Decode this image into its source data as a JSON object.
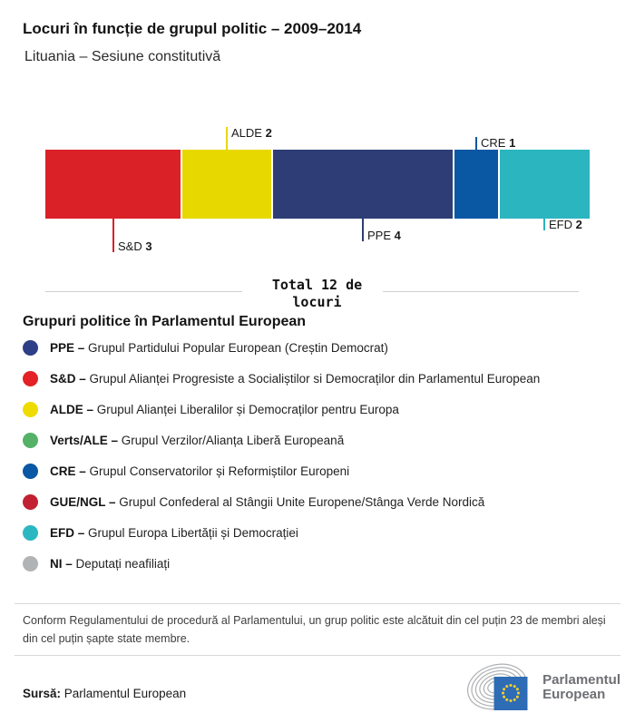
{
  "header": {
    "title": "Locuri în funcție de grupul politic – 2009–2014",
    "subtitle": "Lituania – Sesiune constitutivă"
  },
  "chart_data": {
    "type": "bar",
    "variant": "horizontal-stacked",
    "title": "Locuri în funcție de grupul politic – 2009–2014",
    "country": "Lituania",
    "session": "Sesiune constitutivă",
    "total_seats": 12,
    "total_label": "Total 12 de locuri",
    "categories": [
      "S&D",
      "ALDE",
      "PPE",
      "CRE",
      "EFD"
    ],
    "values": [
      3,
      2,
      4,
      1,
      2
    ],
    "segments": [
      {
        "name": "S&D",
        "seats": 3,
        "color": "#da2128",
        "callout": "below",
        "tick_len": 37
      },
      {
        "name": "ALDE",
        "seats": 2,
        "color": "#e7d800",
        "callout": "above",
        "tick_len": 25
      },
      {
        "name": "PPE",
        "seats": 4,
        "color": "#2e3d76",
        "callout": "below",
        "tick_len": 25
      },
      {
        "name": "CRE",
        "seats": 1,
        "color": "#0a57a4",
        "callout": "above",
        "tick_len": 14
      },
      {
        "name": "EFD",
        "seats": 2,
        "color": "#2ab5bf",
        "callout": "below",
        "tick_len": 13
      }
    ]
  },
  "legend": {
    "title": "Grupuri politice în Parlamentul European",
    "items": [
      {
        "abbr": "PPE –",
        "desc": "Grupul Partidului Popular European (Creștin Democrat)",
        "color": "#2d3f87"
      },
      {
        "abbr": "S&D –",
        "desc": "Grupul Alianței Progresiste a Socialiștilor si Democraților din Parlamentul European",
        "color": "#e32127"
      },
      {
        "abbr": "ALDE –",
        "desc": "Grupul Alianței Liberalilor și Democraților pentru Europa",
        "color": "#eedc00"
      },
      {
        "abbr": "Verts/ALE –",
        "desc": "Grupul Verzilor/Alianța Liberă Europeană",
        "color": "#54b166"
      },
      {
        "abbr": "CRE –",
        "desc": "Grupul Conservatorilor și Reformiștilor Europeni",
        "color": "#0a57a4"
      },
      {
        "abbr": "GUE/NGL –",
        "desc": "Grupul Confederal al Stângii Unite Europene/Stânga Verde Nordică",
        "color": "#c22032"
      },
      {
        "abbr": "EFD –",
        "desc": "Grupul Europa Libertății și Democrației",
        "color": "#2bb7c1"
      },
      {
        "abbr": "NI –",
        "desc": "Deputați neafiliați",
        "color": "#b1b3b4"
      }
    ]
  },
  "footer": {
    "note": "Conform Regulamentului de procedură al Parlamentului, un grup politic este alcătuit din cel puțin 23 de membri aleși din cel puțin șapte state membre.",
    "source_label": "Sursă:",
    "source_value": "Parlamentul European",
    "logo_line1": "Parlamentul",
    "logo_line2": "European"
  }
}
